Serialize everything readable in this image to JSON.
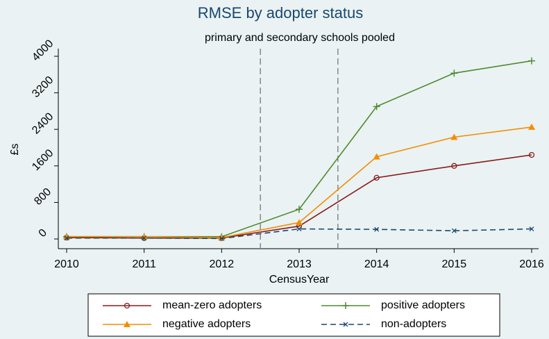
{
  "chart_data": {
    "type": "line",
    "title": "RMSE by adopter status",
    "subtitle": "primary and secondary schools pooled",
    "x_label": "CensusYear",
    "y_label": "£s",
    "x": [
      2010,
      2011,
      2012,
      2013,
      2014,
      2015,
      2016
    ],
    "xlim": [
      2010,
      2016
    ],
    "xticks": [
      2010,
      2011,
      2012,
      2013,
      2014,
      2015,
      2016
    ],
    "ylim": [
      0,
      4000
    ],
    "yticks": [
      0,
      800,
      1600,
      2400,
      3200,
      4000
    ],
    "reference_lines": [
      2012.5,
      2013.5
    ],
    "series": [
      {
        "name": "mean-zero adopters",
        "color": "#8b1a1a",
        "marker": "circle",
        "dash": false,
        "values": [
          30,
          20,
          20,
          280,
          1340,
          1600,
          1840
        ]
      },
      {
        "name": "positive adopters",
        "color": "#4f8a2f",
        "marker": "plus",
        "dash": false,
        "values": [
          50,
          50,
          50,
          650,
          2900,
          3630,
          3900
        ]
      },
      {
        "name": "negative adopters",
        "color": "#f28e00",
        "marker": "triangle",
        "dash": false,
        "values": [
          50,
          50,
          30,
          360,
          1800,
          2230,
          2450
        ]
      },
      {
        "name": "non-adopters",
        "color": "#1a476f",
        "marker": "x",
        "dash": true,
        "values": [
          20,
          20,
          10,
          220,
          210,
          180,
          220
        ]
      }
    ]
  }
}
